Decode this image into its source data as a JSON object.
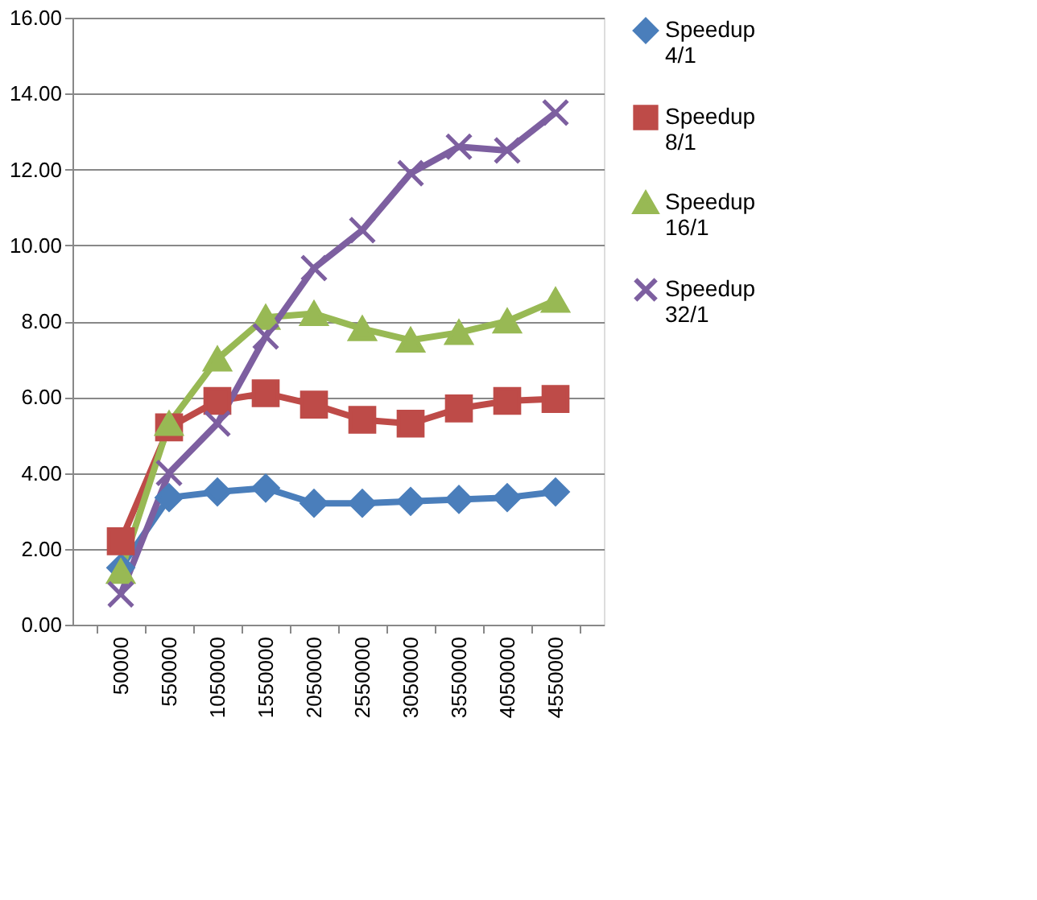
{
  "chart_data": {
    "type": "line",
    "categories": [
      "50000",
      "550000",
      "1050000",
      "1550000",
      "2050000",
      "2550000",
      "3050000",
      "3550000",
      "4050000",
      "4550000"
    ],
    "series": [
      {
        "name": "Speedup 4/1",
        "color": "#4a7ebb",
        "marker": "diamond",
        "values": [
          1.5,
          3.35,
          3.5,
          3.6,
          3.2,
          3.2,
          3.25,
          3.3,
          3.35,
          3.5
        ]
      },
      {
        "name": "Speedup 8/1",
        "color": "#be4b48",
        "marker": "square",
        "values": [
          2.2,
          5.2,
          5.9,
          6.1,
          5.8,
          5.4,
          5.3,
          5.7,
          5.9,
          5.95
        ]
      },
      {
        "name": "Speedup 16/1",
        "color": "#98b954",
        "marker": "triangle",
        "values": [
          1.4,
          5.3,
          7.0,
          8.1,
          8.2,
          7.8,
          7.5,
          7.7,
          8.0,
          8.55
        ]
      },
      {
        "name": "Speedup 32/1",
        "color": "#7d5fa0",
        "marker": "cross",
        "values": [
          0.8,
          4.0,
          5.3,
          7.6,
          9.4,
          10.4,
          11.9,
          12.6,
          12.5,
          13.5
        ]
      }
    ],
    "ylim": [
      0,
      16
    ],
    "yticks": [
      {
        "value": 0,
        "label": "0.00"
      },
      {
        "value": 2,
        "label": "2.00"
      },
      {
        "value": 4,
        "label": "4.00"
      },
      {
        "value": 6,
        "label": "6.00"
      },
      {
        "value": 8,
        "label": "8.00"
      },
      {
        "value": 10,
        "label": "10.00"
      },
      {
        "value": 12,
        "label": "12.00"
      },
      {
        "value": 14,
        "label": "14.00"
      },
      {
        "value": 16,
        "label": "16.00"
      }
    ],
    "grid": "y",
    "legend": "right",
    "line_style": "solid"
  }
}
